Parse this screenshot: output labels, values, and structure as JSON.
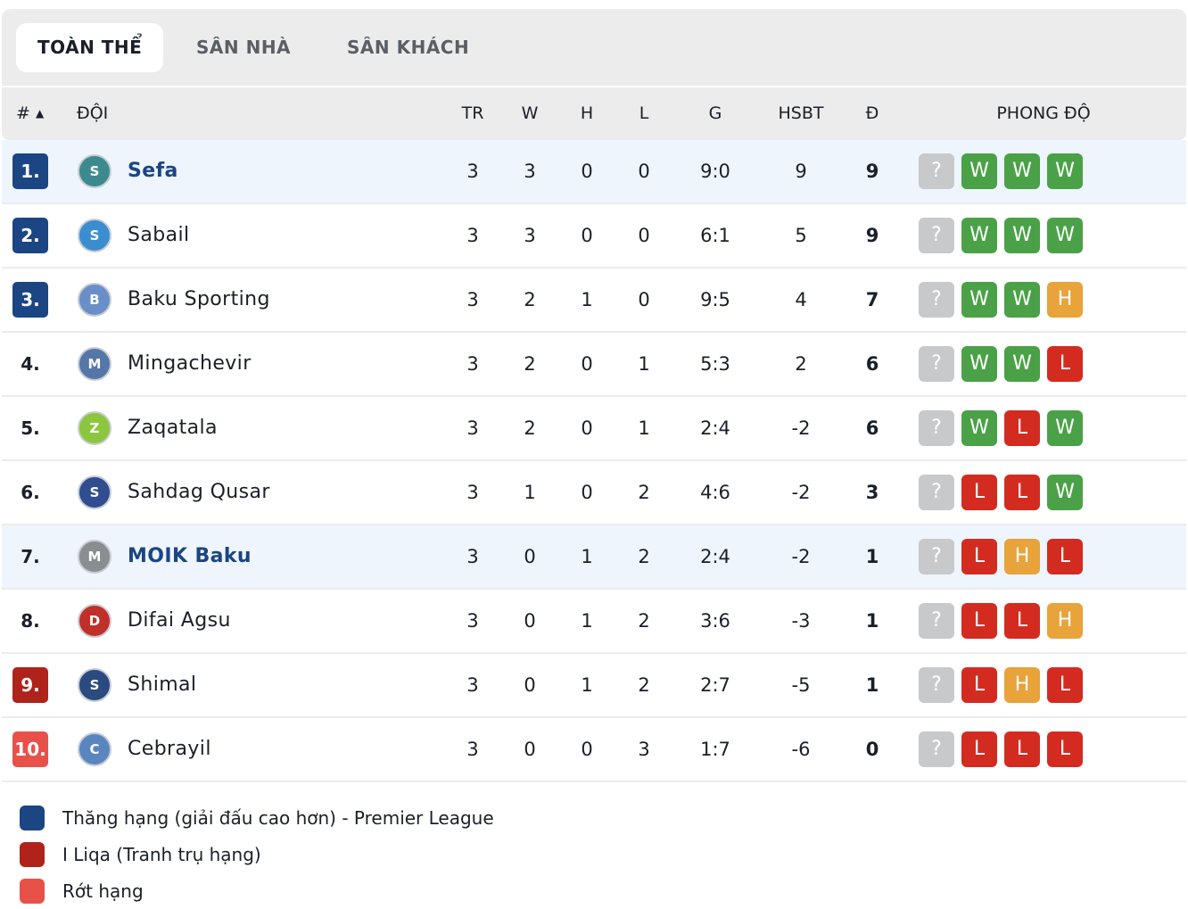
{
  "tabs": [
    {
      "label": "TOÀN THỂ",
      "active": true
    },
    {
      "label": "SÂN NHÀ",
      "active": false
    },
    {
      "label": "SÂN KHÁCH",
      "active": false
    }
  ],
  "columns": {
    "rank": "#",
    "sort_icon": "triangle-up-icon",
    "team": "ĐỘI",
    "played": "TR",
    "won": "W",
    "drawn": "H",
    "lost": "L",
    "goals": "G",
    "goal_diff": "HSBT",
    "points": "Đ",
    "form": "PHONG ĐỘ"
  },
  "colors": {
    "promotion": "#1b4583",
    "playoff": "#b0231a",
    "relegation": "#e8504a",
    "highlight_row": "#eef5fd",
    "W": "#4aa147",
    "L": "#d42b20",
    "H": "#e8a33a",
    "?": "#c8c9cb"
  },
  "rows": [
    {
      "rank": "1.",
      "zone": "promotion",
      "highlight": true,
      "team": "Sefa",
      "logo_icon": "sefa-crest-icon",
      "logo_color": "#3d8a8e",
      "played": "3",
      "won": "3",
      "drawn": "0",
      "lost": "0",
      "goals": "9:0",
      "goal_diff": "9",
      "points": "9",
      "form": [
        "?",
        "W",
        "W",
        "W"
      ]
    },
    {
      "rank": "2.",
      "zone": "promotion",
      "highlight": false,
      "team": "Sabail",
      "logo_icon": "sabail-crest-icon",
      "logo_color": "#3a8ed0",
      "played": "3",
      "won": "3",
      "drawn": "0",
      "lost": "0",
      "goals": "6:1",
      "goal_diff": "5",
      "points": "9",
      "form": [
        "?",
        "W",
        "W",
        "W"
      ]
    },
    {
      "rank": "3.",
      "zone": "promotion",
      "highlight": false,
      "team": "Baku Sporting",
      "logo_icon": "baku-sporting-crest-icon",
      "logo_color": "#6a8fc8",
      "played": "3",
      "won": "2",
      "drawn": "1",
      "lost": "0",
      "goals": "9:5",
      "goal_diff": "4",
      "points": "7",
      "form": [
        "?",
        "W",
        "W",
        "H"
      ]
    },
    {
      "rank": "4.",
      "zone": "",
      "highlight": false,
      "team": "Mingachevir",
      "logo_icon": "mingachevir-crest-icon",
      "logo_color": "#5577a8",
      "played": "3",
      "won": "2",
      "drawn": "0",
      "lost": "1",
      "goals": "5:3",
      "goal_diff": "2",
      "points": "6",
      "form": [
        "?",
        "W",
        "W",
        "L"
      ]
    },
    {
      "rank": "5.",
      "zone": "",
      "highlight": false,
      "team": "Zaqatala",
      "logo_icon": "zaqatala-crest-icon",
      "logo_color": "#8cc63f",
      "played": "3",
      "won": "2",
      "drawn": "0",
      "lost": "1",
      "goals": "2:4",
      "goal_diff": "-2",
      "points": "6",
      "form": [
        "?",
        "W",
        "L",
        "W"
      ]
    },
    {
      "rank": "6.",
      "zone": "",
      "highlight": false,
      "team": "Sahdag Qusar",
      "logo_icon": "sahdag-qusar-crest-icon",
      "logo_color": "#2f4d8f",
      "played": "3",
      "won": "1",
      "drawn": "0",
      "lost": "2",
      "goals": "4:6",
      "goal_diff": "-2",
      "points": "3",
      "form": [
        "?",
        "L",
        "L",
        "W"
      ]
    },
    {
      "rank": "7.",
      "zone": "",
      "highlight": true,
      "team": "MOIK Baku",
      "logo_icon": "moik-baku-crest-icon",
      "logo_color": "#8a8d92",
      "played": "3",
      "won": "0",
      "drawn": "1",
      "lost": "2",
      "goals": "2:4",
      "goal_diff": "-2",
      "points": "1",
      "form": [
        "?",
        "L",
        "H",
        "L"
      ]
    },
    {
      "rank": "8.",
      "zone": "",
      "highlight": false,
      "team": "Difai Agsu",
      "logo_icon": "difai-agsu-crest-icon",
      "logo_color": "#c0302a",
      "played": "3",
      "won": "0",
      "drawn": "1",
      "lost": "2",
      "goals": "3:6",
      "goal_diff": "-3",
      "points": "1",
      "form": [
        "?",
        "L",
        "L",
        "H"
      ]
    },
    {
      "rank": "9.",
      "zone": "playoff",
      "highlight": false,
      "team": "Shimal",
      "logo_icon": "shimal-crest-icon",
      "logo_color": "#2a4a80",
      "played": "3",
      "won": "0",
      "drawn": "1",
      "lost": "2",
      "goals": "2:7",
      "goal_diff": "-5",
      "points": "1",
      "form": [
        "?",
        "L",
        "H",
        "L"
      ]
    },
    {
      "rank": "10.",
      "zone": "relegation",
      "highlight": false,
      "team": "Cebrayil",
      "logo_icon": "cebrayil-crest-icon",
      "logo_color": "#5a86c0",
      "played": "3",
      "won": "0",
      "drawn": "0",
      "lost": "3",
      "goals": "1:7",
      "goal_diff": "-6",
      "points": "0",
      "form": [
        "?",
        "L",
        "L",
        "L"
      ]
    }
  ],
  "legend": [
    {
      "zone": "promotion",
      "label": "Thăng hạng (giải đấu cao hơn) - Premier League"
    },
    {
      "zone": "playoff",
      "label": "I Liqa (Tranh trụ hạng)"
    },
    {
      "zone": "relegation",
      "label": "Rớt hạng"
    }
  ]
}
